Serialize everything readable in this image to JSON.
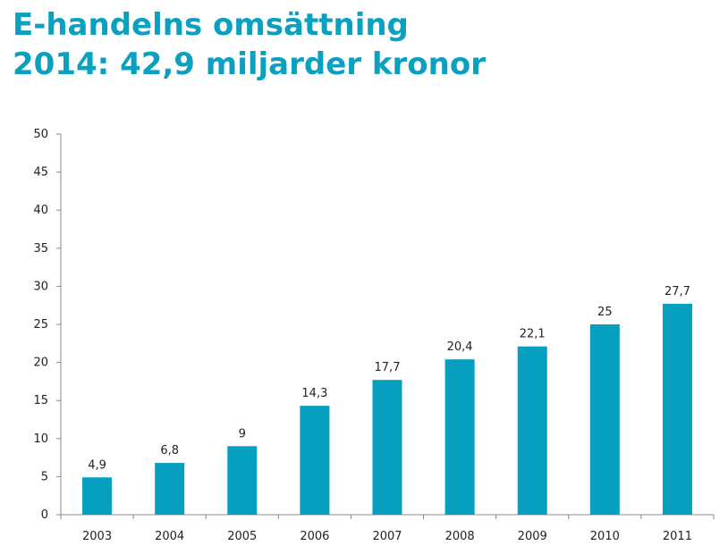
{
  "title_lines": [
    "E-handelns omsättning",
    "2014: 42,9 miljarder kronor"
  ],
  "colors": {
    "title": "#0aa0c0",
    "bar": "#069fc0",
    "axis": "#888888",
    "text": "#222222"
  },
  "chart_data": {
    "type": "bar",
    "categories": [
      "2003",
      "2004",
      "2005",
      "2006",
      "2007",
      "2008",
      "2009",
      "2010",
      "2011"
    ],
    "values": [
      4.9,
      6.8,
      9,
      14.3,
      17.7,
      20.4,
      22.1,
      25,
      27.7
    ],
    "data_labels": [
      "4,9",
      "6,8",
      "9",
      "14,3",
      "17,7",
      "20,4",
      "22,1",
      "25",
      "27,7"
    ],
    "y_ticks": [
      "0",
      "5",
      "10",
      "15",
      "20",
      "25",
      "30",
      "35",
      "40",
      "45",
      "50"
    ],
    "ylim": [
      0,
      50
    ],
    "grid": false,
    "legend": "none"
  }
}
